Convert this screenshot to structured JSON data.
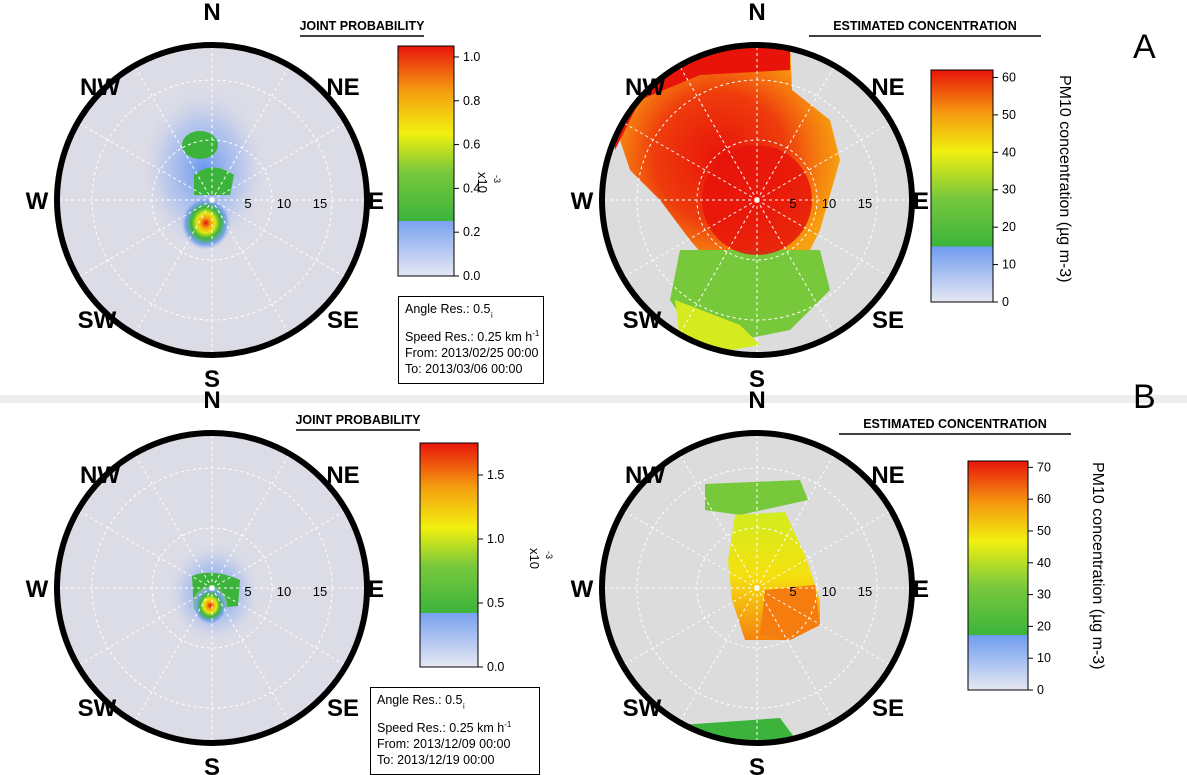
{
  "panels": [
    {
      "letter": "A",
      "joint": {
        "title": "JOINT PROBABILITY",
        "colorbar": {
          "ticks": [
            "0.0",
            "0.2",
            "0.4",
            "0.6",
            "0.8",
            "1.0"
          ],
          "tick_values": [
            0,
            0.2,
            0.4,
            0.6,
            0.8,
            1.0
          ],
          "max": 1.05,
          "unit": "x10",
          "exp": "-3"
        },
        "hotspot": {
          "direction_deg": 200,
          "speed": 1.5
        },
        "info": {
          "angle": "Angle Res.: 0.5",
          "angle_sub": "¡",
          "speed": "Speed Res.: 0.25 km h",
          "speed_sup": "-1",
          "from": "From: 2013/02/25 00:00",
          "to": "To: 2013/03/06 00:00"
        }
      },
      "conc": {
        "title": "ESTIMATED CONCENTRATION",
        "colorbar": {
          "ticks": [
            "0",
            "10",
            "20",
            "30",
            "40",
            "50",
            "60"
          ],
          "tick_values": [
            0,
            10,
            20,
            30,
            40,
            50,
            60
          ],
          "max": 62
        },
        "label_main": "PM",
        "label_sub": "10",
        "label_rest": " concentration (µg m",
        "label_sup": "-3",
        "label_end": ")"
      }
    },
    {
      "letter": "B",
      "joint": {
        "title": "JOINT PROBABILITY",
        "colorbar": {
          "ticks": [
            "0.0",
            "0.5",
            "1.0",
            "1.5"
          ],
          "tick_values": [
            0,
            0.5,
            1.0,
            1.5
          ],
          "max": 1.75,
          "unit": "x10",
          "exp": "-3"
        },
        "hotspot": {
          "direction_deg": 200,
          "speed": 1.2
        },
        "info": {
          "angle": "Angle Res.: 0.5",
          "angle_sub": "¡",
          "speed": "Speed Res.: 0.25 km h",
          "speed_sup": "-1",
          "from": "From: 2013/12/09 00:00",
          "to": "To: 2013/12/19 00:00"
        }
      },
      "conc": {
        "title": "ESTIMATED CONCENTRATION",
        "colorbar": {
          "ticks": [
            "0",
            "10",
            "20",
            "30",
            "40",
            "50",
            "60",
            "70"
          ],
          "tick_values": [
            0,
            10,
            20,
            30,
            40,
            50,
            60,
            70
          ],
          "max": 72
        },
        "label_main": "PM",
        "label_sub": "10",
        "label_rest": " concentration (µg m",
        "label_sup": "-3",
        "label_end": ")"
      }
    }
  ],
  "compass": {
    "N": "N",
    "NE": "NE",
    "E": "E",
    "SE": "SE",
    "S": "S",
    "SW": "SW",
    "W": "W",
    "NW": "NW"
  },
  "speed_rings": [
    "5",
    "10",
    "15"
  ],
  "colors": {
    "red": "#e8140a",
    "orange": "#f57d0f",
    "yellow": "#f5f00f",
    "green": "#3cb43c",
    "blue": "#6e9bf0",
    "grey": "#dcdcdc",
    "field": "#dcdce6"
  },
  "chart_data": [
    {
      "type": "heatmap",
      "title": "JOINT PROBABILITY",
      "polar": true,
      "radial_unit": "km h-1",
      "radial_ticks": [
        5,
        10,
        15
      ],
      "colorbar_range": [
        0,
        1.0
      ],
      "colorbar_unit": "x10^-3",
      "peak": {
        "direction": "SSW",
        "speed": 1.5
      }
    },
    {
      "type": "heatmap",
      "title": "ESTIMATED CONCENTRATION",
      "polar": true,
      "radial_ticks": [
        5,
        10,
        15
      ],
      "colorbar_range": [
        0,
        60
      ],
      "colorbar_label": "PM10 concentration (µg m-3)",
      "high_sectors": [
        "NW",
        "N",
        "center"
      ],
      "low_sectors": [
        "S",
        "SSW"
      ]
    },
    {
      "type": "heatmap",
      "title": "JOINT PROBABILITY",
      "polar": true,
      "radial_ticks": [
        5,
        10,
        15
      ],
      "colorbar_range": [
        0,
        1.5
      ],
      "colorbar_unit": "x10^-3",
      "peak": {
        "direction": "SSW",
        "speed": 1.2
      }
    },
    {
      "type": "heatmap",
      "title": "ESTIMATED CONCENTRATION",
      "polar": true,
      "radial_ticks": [
        5,
        10,
        15
      ],
      "colorbar_range": [
        0,
        70
      ],
      "colorbar_label": "PM10 concentration (µg m-3)",
      "high_sectors": [
        "SE"
      ],
      "low_sectors": [
        "NW",
        "SSW"
      ]
    }
  ]
}
